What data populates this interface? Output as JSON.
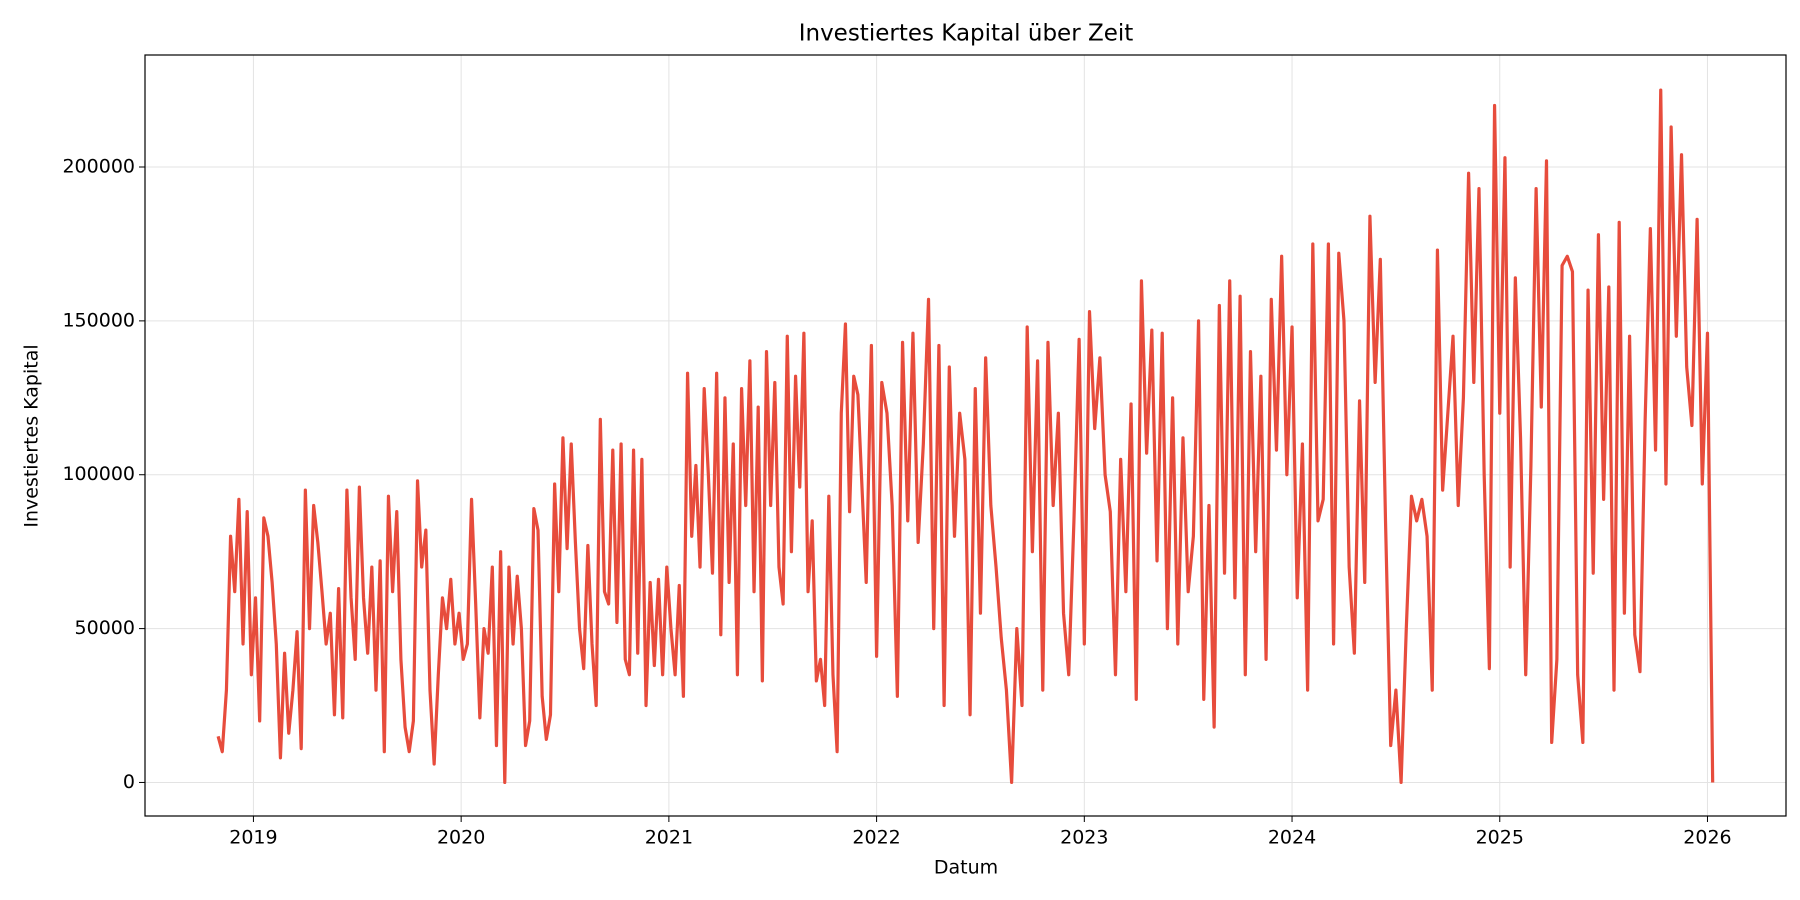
{
  "chart_data": {
    "type": "line",
    "title": "Investiertes Kapital über Zeit",
    "xlabel": "Datum",
    "ylabel": "Investiertes Kapital",
    "xlim": [
      2018.478,
      2026.378
    ],
    "ylim": [
      -10900,
      236400
    ],
    "xticks": [
      2019,
      2020,
      2021,
      2022,
      2023,
      2024,
      2025,
      2026
    ],
    "yticks": [
      0,
      50000,
      100000,
      150000,
      200000
    ],
    "grid": true,
    "series": [
      {
        "name": "Investiertes Kapital",
        "color": "#e74c3c",
        "x": [
          2018.83,
          2018.85,
          2018.87,
          2018.89,
          2018.91,
          2018.93,
          2018.95,
          2018.97,
          2018.99,
          2019.01,
          2019.03,
          2019.05,
          2019.07,
          2019.09,
          2019.11,
          2019.13,
          2019.15,
          2019.17,
          2019.19,
          2019.21,
          2019.23,
          2019.25,
          2019.27,
          2019.29,
          2019.31,
          2019.33,
          2019.35,
          2019.37,
          2019.39,
          2019.41,
          2019.43,
          2019.45,
          2019.47,
          2019.49,
          2019.51,
          2019.53,
          2019.55,
          2019.57,
          2019.59,
          2019.61,
          2019.63,
          2019.65,
          2019.67,
          2019.69,
          2019.71,
          2019.73,
          2019.75,
          2019.77,
          2019.79,
          2019.81,
          2019.83,
          2019.85,
          2019.87,
          2019.89,
          2019.91,
          2019.93,
          2019.95,
          2019.97,
          2019.99,
          2020.01,
          2020.03,
          2020.05,
          2020.07,
          2020.09,
          2020.11,
          2020.13,
          2020.15,
          2020.17,
          2020.19,
          2020.21,
          2020.23,
          2020.25,
          2020.27,
          2020.29,
          2020.31,
          2020.33,
          2020.35,
          2020.37,
          2020.39,
          2020.41,
          2020.43,
          2020.45,
          2020.47,
          2020.49,
          2020.51,
          2020.53,
          2020.55,
          2020.57,
          2020.59,
          2020.61,
          2020.63,
          2020.65,
          2020.67,
          2020.69,
          2020.71,
          2020.73,
          2020.75,
          2020.77,
          2020.79,
          2020.81,
          2020.83,
          2020.85,
          2020.87,
          2020.89,
          2020.91,
          2020.93,
          2020.95,
          2020.97,
          2020.99,
          2021.01,
          2021.03,
          2021.05,
          2021.07,
          2021.09,
          2021.11,
          2021.13,
          2021.15,
          2021.17,
          2021.19,
          2021.21,
          2021.23,
          2021.25,
          2021.27,
          2021.29,
          2021.31,
          2021.33,
          2021.35,
          2021.37,
          2021.39,
          2021.41,
          2021.43,
          2021.45,
          2021.47,
          2021.49,
          2021.51,
          2021.53,
          2021.55,
          2021.57,
          2021.59,
          2021.61,
          2021.63,
          2021.65,
          2021.67,
          2021.69,
          2021.71,
          2021.73,
          2021.75,
          2021.77,
          2021.79,
          2021.81,
          2021.83,
          2021.85,
          2021.87,
          2021.89,
          2021.91,
          2021.95,
          2021.975,
          2022,
          2022.025,
          2022.05,
          2022.075,
          2022.1,
          2022.125,
          2022.15,
          2022.175,
          2022.2,
          2022.225,
          2022.25,
          2022.275,
          2022.3,
          2022.325,
          2022.35,
          2022.375,
          2022.4,
          2022.425,
          2022.45,
          2022.475,
          2022.5,
          2022.525,
          2022.55,
          2022.575,
          2022.6,
          2022.625,
          2022.65,
          2022.675,
          2022.7,
          2022.725,
          2022.75,
          2022.775,
          2022.8,
          2022.825,
          2022.85,
          2022.875,
          2022.9,
          2022.925,
          2022.95,
          2022.975,
          2023,
          2023.025,
          2023.05,
          2023.075,
          2023.1,
          2023.125,
          2023.15,
          2023.175,
          2023.2,
          2023.225,
          2023.25,
          2023.275,
          2023.3,
          2023.325,
          2023.35,
          2023.375,
          2023.4,
          2023.425,
          2023.45,
          2023.475,
          2023.5,
          2023.525,
          2023.55,
          2023.575,
          2023.6,
          2023.625,
          2023.65,
          2023.675,
          2023.7,
          2023.725,
          2023.75,
          2023.775,
          2023.8,
          2023.825,
          2023.85,
          2023.875,
          2023.9,
          2023.925,
          2023.95,
          2023.975,
          2024,
          2024.025,
          2024.05,
          2024.075,
          2024.1,
          2024.125,
          2024.15,
          2024.175,
          2024.2,
          2024.225,
          2024.25,
          2024.275,
          2024.3,
          2024.325,
          2024.35,
          2024.375,
          2024.4,
          2024.425,
          2024.45,
          2024.475,
          2024.5,
          2024.525,
          2024.55,
          2024.575,
          2024.6,
          2024.625,
          2024.65,
          2024.675,
          2024.7,
          2024.725,
          2024.75,
          2024.775,
          2024.8,
          2024.825,
          2024.85,
          2024.875,
          2024.9,
          2024.925,
          2024.95,
          2024.975,
          2025,
          2025.025,
          2025.05,
          2025.075,
          2025.1,
          2025.125,
          2025.15,
          2025.175,
          2025.2,
          2025.225,
          2025.25,
          2025.275,
          2025.3,
          2025.325,
          2025.35,
          2025.375,
          2025.4,
          2025.425,
          2025.45,
          2025.475,
          2025.5,
          2025.525,
          2025.55,
          2025.575,
          2025.6,
          2025.625,
          2025.65,
          2025.675,
          2025.7,
          2025.725,
          2025.75,
          2025.775,
          2025.8,
          2025.825,
          2025.85,
          2025.875,
          2025.9,
          2025.925,
          2025.95,
          2025.975,
          2026,
          2026.025
        ],
        "values": [
          15000,
          10000,
          30000,
          80000,
          62000,
          92000,
          45000,
          88000,
          35000,
          60000,
          20000,
          86000,
          80000,
          65000,
          45000,
          8000,
          42000,
          16000,
          30000,
          49000,
          11000,
          95000,
          50000,
          90000,
          78000,
          62000,
          45000,
          55000,
          22000,
          63000,
          21000,
          95000,
          60000,
          40000,
          96000,
          60000,
          42000,
          70000,
          30000,
          72000,
          10000,
          93000,
          62000,
          88000,
          40000,
          18000,
          10000,
          20000,
          98000,
          70000,
          82000,
          30000,
          6000,
          35000,
          60000,
          50000,
          66000,
          45000,
          55000,
          40000,
          45000,
          92000,
          58000,
          21000,
          50000,
          42000,
          70000,
          12000,
          75000,
          0,
          70000,
          45000,
          67000,
          50000,
          12000,
          20000,
          89000,
          82000,
          28000,
          14000,
          22000,
          97000,
          62000,
          112000,
          76000,
          110000,
          78000,
          50000,
          37000,
          77000,
          45000,
          25000,
          118000,
          62000,
          58000,
          108000,
          52000,
          110000,
          40000,
          35000,
          108000,
          42000,
          105000,
          25000,
          65000,
          38000,
          66000,
          35000,
          70000,
          50000,
          35000,
          64000,
          28000,
          133000,
          80000,
          103000,
          70000,
          128000,
          100000,
          68000,
          133000,
          48000,
          125000,
          65000,
          110000,
          35000,
          128000,
          90000,
          137000,
          62000,
          122000,
          33000,
          140000,
          90000,
          130000,
          70000,
          58000,
          145000,
          75000,
          132000,
          96000,
          146000,
          62000,
          85000,
          33000,
          40000,
          25000,
          93000,
          35000,
          10000,
          120000,
          149000,
          88000,
          132000,
          126000,
          65000,
          142000,
          41000,
          130000,
          120000,
          90000,
          28000,
          143000,
          85000,
          146000,
          78000,
          110000,
          157000,
          50000,
          142000,
          25000,
          135000,
          80000,
          120000,
          105000,
          22000,
          128000,
          55000,
          138000,
          90000,
          70000,
          47000,
          30000,
          0,
          50000,
          25000,
          148000,
          75000,
          137000,
          30000,
          143000,
          90000,
          120000,
          55000,
          35000,
          85000,
          144000,
          45000,
          153000,
          115000,
          138000,
          100000,
          88000,
          35000,
          105000,
          62000,
          123000,
          27000,
          163000,
          107000,
          147000,
          72000,
          146000,
          50000,
          125000,
          45000,
          112000,
          62000,
          80000,
          150000,
          27000,
          90000,
          18000,
          155000,
          68000,
          163000,
          60000,
          158000,
          35000,
          140000,
          75000,
          132000,
          40000,
          157000,
          108000,
          171000,
          100000,
          148000,
          60000,
          110000,
          30000,
          175000,
          85000,
          92000,
          175000,
          45000,
          172000,
          150000,
          70000,
          42000,
          124000,
          65000,
          184000,
          130000,
          170000,
          85000,
          12000,
          30000,
          0,
          50000,
          93000,
          85000,
          92000,
          80000,
          30000,
          173000,
          95000,
          120000,
          145000,
          90000,
          125000,
          198000,
          130000,
          193000,
          100000,
          37000,
          220000,
          120000,
          203000,
          70000,
          164000,
          112000,
          35000,
          103000,
          193000,
          122000,
          202000,
          13000,
          40000,
          168000,
          171000,
          166000,
          35000,
          13000,
          160000,
          68000,
          178000,
          92000,
          161000,
          30000,
          182000,
          55000,
          145000,
          48000,
          36000,
          118000,
          180000,
          108000,
          225000,
          97000,
          213000,
          145000,
          204000,
          135000,
          116000,
          183000,
          97000,
          146000,
          0
        ]
      }
    ]
  }
}
